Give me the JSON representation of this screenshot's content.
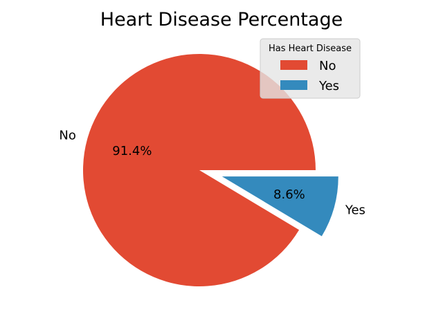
{
  "chart_data": {
    "type": "pie",
    "title": "Heart Disease Percentage",
    "categories": [
      "No",
      "Yes"
    ],
    "values": [
      91.4,
      8.6
    ],
    "percent_labels": [
      "91.4%",
      "8.6%"
    ],
    "colors": [
      "#E24A33",
      "#348ABD"
    ],
    "explode": [
      0,
      1
    ],
    "legend": {
      "title": "Has Heart Disease",
      "entries": [
        "No",
        "Yes"
      ],
      "placement": "top-right"
    }
  }
}
